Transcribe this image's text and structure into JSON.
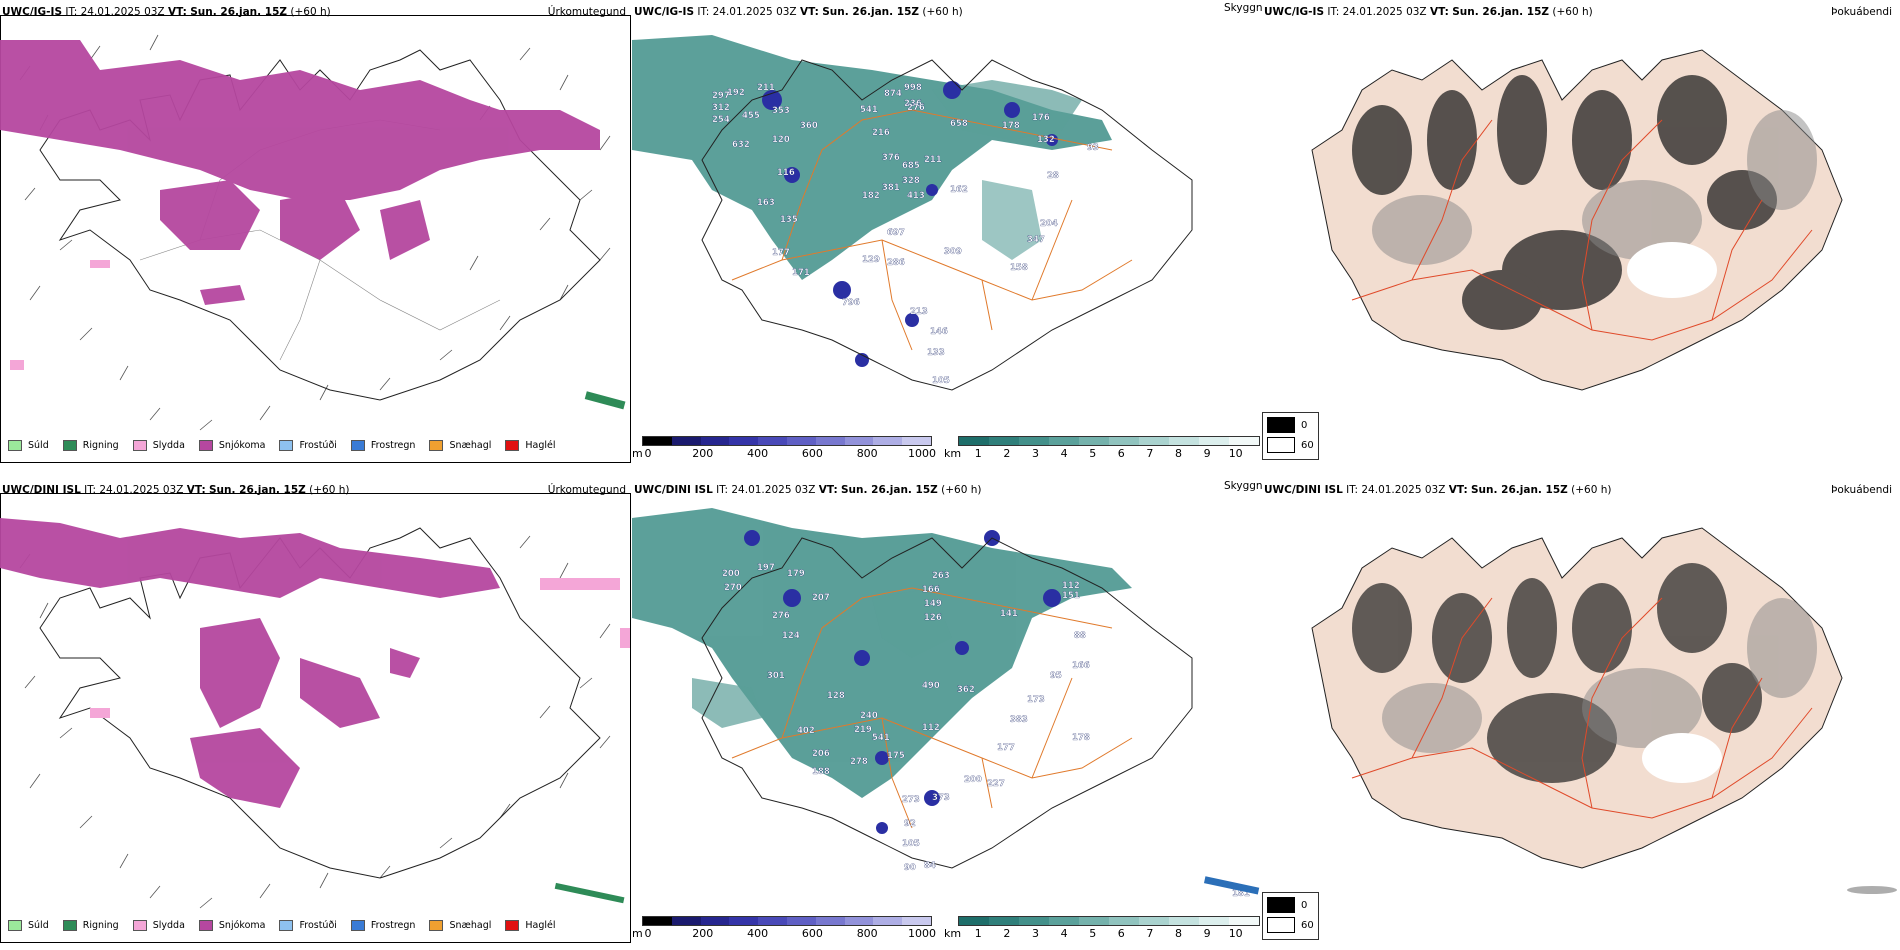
{
  "rows": [
    {
      "precip": {
        "model": "UWC/IG-IS",
        "it_label": "IT:",
        "it_value": "24.01.2025 03Z",
        "vt_label": "VT:",
        "vt_value": "Sun. 26.jan. 15Z",
        "lead": "(+60 h)",
        "product": "Úrkomutegund"
      },
      "visibility": {
        "model": "UWC/IG-IS",
        "it_label": "IT:",
        "it_value": "24.01.2025 03Z",
        "vt_label": "VT:",
        "vt_value": "Sun. 26.jan. 15Z",
        "lead": "(+60 h)",
        "product": "Skyggni",
        "values": [
          "192",
          "211",
          "297",
          "312",
          "254",
          "632",
          "455",
          "353",
          "360",
          "120",
          "116",
          "163",
          "135",
          "177",
          "171",
          "796",
          "129",
          "286",
          "697",
          "182",
          "381",
          "413",
          "328",
          "376",
          "685",
          "211",
          "162",
          "216",
          "541",
          "998",
          "874",
          "236",
          "658",
          "276",
          "178",
          "176",
          "93",
          "132",
          "28",
          "204",
          "347",
          "158",
          "309",
          "213",
          "146",
          "133",
          "105"
        ]
      },
      "fog": {
        "model": "UWC/IG-IS",
        "it_label": "IT:",
        "it_value": "24.01.2025 03Z",
        "vt_label": "VT:",
        "vt_value": "Sun. 26.jan. 15Z",
        "lead": "(+60 h)",
        "product": "Þokuábendi"
      }
    },
    {
      "precip": {
        "model": "UWC/DINI ISL",
        "it_label": "IT:",
        "it_value": "24.01.2025 03Z",
        "vt_label": "VT:",
        "vt_value": "Sun. 26.jan. 15Z",
        "lead": "(+60 h)",
        "product": "Úrkomutegund"
      },
      "visibility": {
        "model": "UWC/DINI ISL",
        "it_label": "IT:",
        "it_value": "24.01.2025 03Z",
        "vt_label": "VT:",
        "vt_value": "Sun. 26.jan. 15Z",
        "lead": "(+60 h)",
        "product": "Skyggni",
        "values": [
          "200",
          "197",
          "179",
          "270",
          "207",
          "276",
          "124",
          "301",
          "402",
          "128",
          "240",
          "219",
          "541",
          "206",
          "188",
          "278",
          "175",
          "112",
          "490",
          "362",
          "200",
          "227",
          "173",
          "383",
          "177",
          "273",
          "373",
          "92",
          "105",
          "90",
          "84",
          "263",
          "166",
          "149",
          "126",
          "141",
          "112",
          "88",
          "95",
          "151",
          "166",
          "178",
          "181"
        ]
      },
      "fog": {
        "model": "UWC/DINI ISL",
        "it_label": "IT:",
        "it_value": "24.01.2025 03Z",
        "vt_label": "VT:",
        "vt_value": "Sun. 26.jan. 15Z",
        "lead": "(+60 h)",
        "product": "Þokuábendi"
      }
    }
  ],
  "precip_legend": [
    {
      "label": "Súld",
      "color": "#9be89b"
    },
    {
      "label": "Rigning",
      "color": "#2e8b57"
    },
    {
      "label": "Slydda",
      "color": "#f4a6d7"
    },
    {
      "label": "Snjókoma",
      "color": "#b5479f"
    },
    {
      "label": "Frostúði",
      "color": "#8ec1ef"
    },
    {
      "label": "Frostregn",
      "color": "#3a7bd5"
    },
    {
      "label": "Snæhagl",
      "color": "#f0a030"
    },
    {
      "label": "Haglél",
      "color": "#e01010"
    }
  ],
  "ceiling_bar": {
    "unit": "m",
    "ticks": [
      "0",
      "200",
      "400",
      "600",
      "800",
      "1000"
    ],
    "colors": [
      "#000000",
      "#1a1a6e",
      "#26268f",
      "#3434a8",
      "#4949b8",
      "#5f5fc4",
      "#7878cf",
      "#9292da",
      "#aeaee5",
      "#c9c9ee"
    ]
  },
  "vis_bar": {
    "unit": "km",
    "ticks": [
      "1",
      "2",
      "3",
      "4",
      "5",
      "6",
      "7",
      "8",
      "9",
      "10"
    ],
    "colors": [
      "#1e6e6a",
      "#2f7f7a",
      "#43908a",
      "#5ba19b",
      "#75b2ac",
      "#90c3be",
      "#aad3cf",
      "#c4e2df",
      "#dcefed",
      "#f2f9f8"
    ]
  },
  "fog_legend": [
    {
      "label": "0",
      "color": "#000000"
    },
    {
      "label": "60",
      "color": "#ffffff"
    }
  ],
  "colors": {
    "snow": "#b5479f",
    "sleet": "#f4a6d7",
    "rain": "#2e8b57",
    "vis_fill": "#3f8f88",
    "ceiling": "#2a2fa3",
    "roads": "#e07a2c",
    "fog_land": "#f2ddd0",
    "fog_roads": "#e04a2a"
  }
}
